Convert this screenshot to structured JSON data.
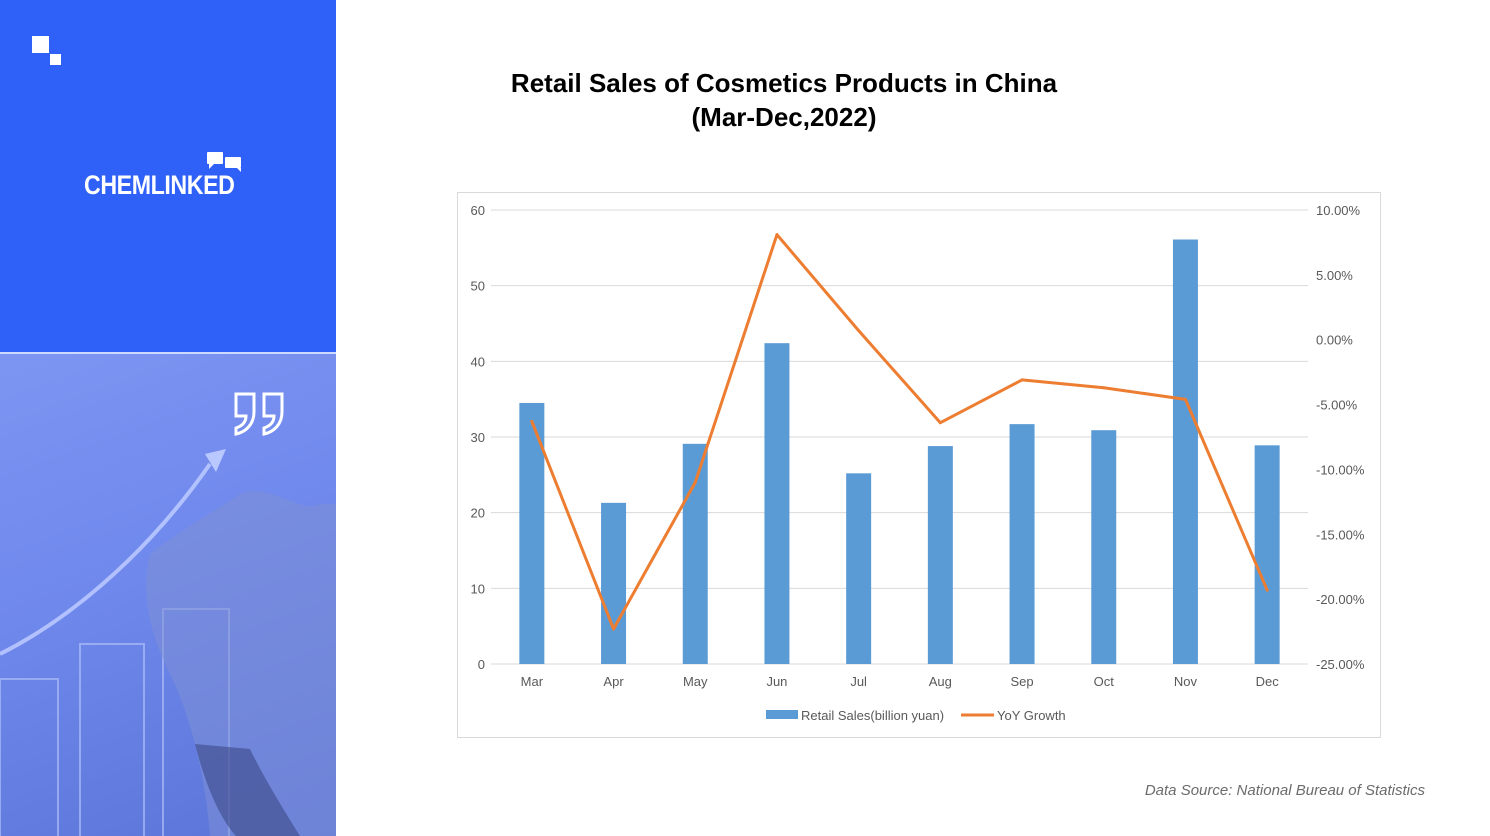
{
  "brand": {
    "name": "CHEMLINKED"
  },
  "colors": {
    "sidebar": "#2f60f7",
    "bar": "#5b9bd5",
    "line": "#ed7d31",
    "grid": "#d9d9d9"
  },
  "icons": [
    "logo-squares-icon",
    "chat-bubbles-icon",
    "quote-icon"
  ],
  "title_line1": "Retail Sales of Cosmetics Products in China",
  "title_line2": "(Mar-Dec,2022)",
  "source": "Data Source: National Bureau of Statistics",
  "chart_data": {
    "type": "bar",
    "categories": [
      "Mar",
      "Apr",
      "May",
      "Jun",
      "Jul",
      "Aug",
      "Sep",
      "Oct",
      "Nov",
      "Dec"
    ],
    "series": [
      {
        "name": "Retail Sales(billion yuan)",
        "type": "bar",
        "axis": "left",
        "values": [
          34.5,
          21.3,
          29.1,
          42.4,
          25.2,
          28.8,
          31.7,
          30.9,
          56.1,
          28.9
        ]
      },
      {
        "name": "YoY Growth",
        "type": "line",
        "axis": "right",
        "values": [
          -6.3,
          -22.3,
          -11.0,
          8.1,
          0.7,
          -6.4,
          -3.1,
          -3.7,
          -4.6,
          -19.3
        ]
      }
    ],
    "left_axis": {
      "ylim": [
        0,
        60
      ],
      "ticks": [
        "0",
        "10",
        "20",
        "30",
        "40",
        "50",
        "60"
      ]
    },
    "right_axis": {
      "ylim": [
        -25,
        10
      ],
      "ticks": [
        "-25.00%",
        "-20.00%",
        "-15.00%",
        "-10.00%",
        "-5.00%",
        "0.00%",
        "5.00%",
        "10.00%"
      ]
    },
    "grid": true,
    "legend_position": "bottom"
  }
}
